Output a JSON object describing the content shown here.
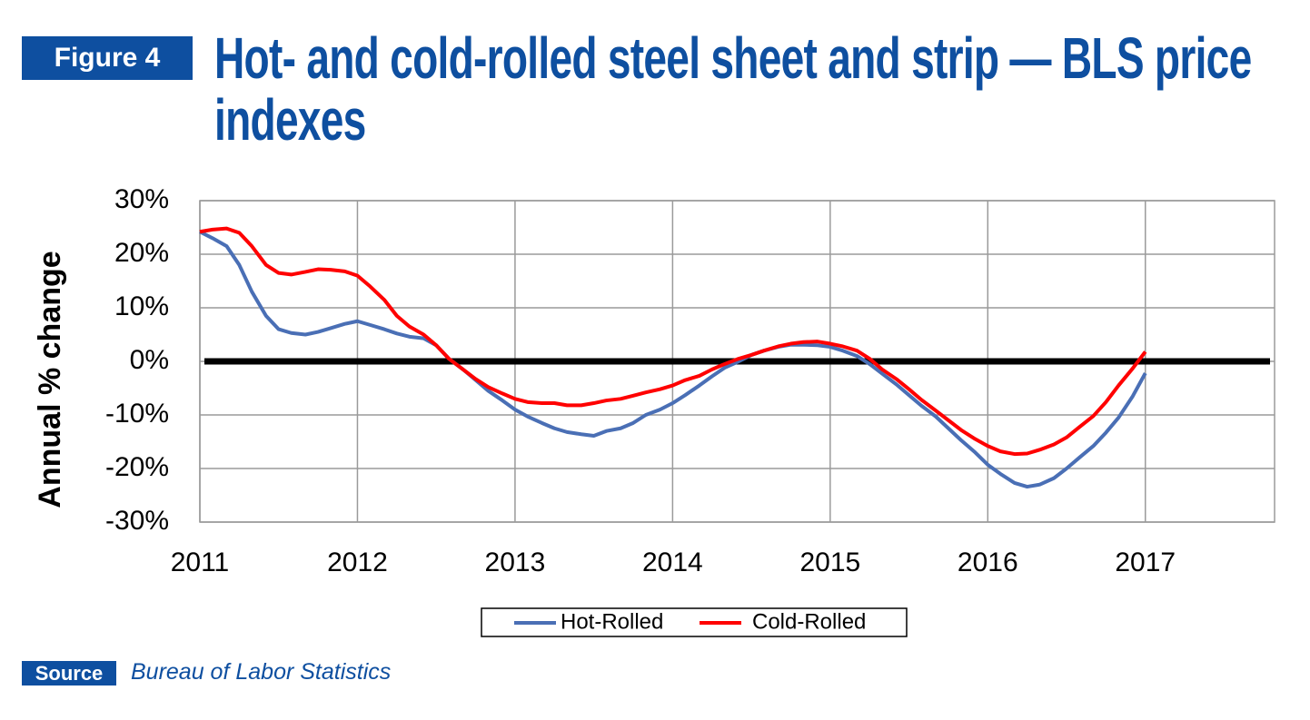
{
  "figure_label": "Figure 4",
  "source_label": "Source",
  "source": "Bureau of Labor Statistics",
  "chart_data": {
    "type": "line",
    "title": "Hot- and cold-rolled steel sheet and strip — BLS price indexes",
    "y_label": "Annual % change",
    "x": [
      2011,
      2011.08,
      2011.17,
      2011.25,
      2011.33,
      2011.42,
      2011.5,
      2011.58,
      2011.67,
      2011.75,
      2011.83,
      2011.92,
      2012,
      2012.08,
      2012.17,
      2012.25,
      2012.33,
      2012.42,
      2012.5,
      2012.58,
      2012.67,
      2012.75,
      2012.83,
      2012.92,
      2013,
      2013.08,
      2013.17,
      2013.25,
      2013.33,
      2013.42,
      2013.5,
      2013.58,
      2013.67,
      2013.75,
      2013.83,
      2013.92,
      2014,
      2014.08,
      2014.17,
      2014.25,
      2014.33,
      2014.42,
      2014.5,
      2014.58,
      2014.67,
      2014.75,
      2014.83,
      2014.92,
      2015,
      2015.08,
      2015.17,
      2015.25,
      2015.33,
      2015.42,
      2015.5,
      2015.58,
      2015.67,
      2015.75,
      2015.83,
      2015.92,
      2016,
      2016.08,
      2016.17,
      2016.25,
      2016.33,
      2016.42,
      2016.5,
      2016.58,
      2016.67,
      2016.75,
      2016.83,
      2016.92,
      2017
    ],
    "series": [
      {
        "name": "Hot-Rolled",
        "color": "#4a6fb5",
        "values": [
          24.2,
          23,
          21.5,
          18,
          13,
          8.5,
          6,
          5.3,
          5,
          5.5,
          6.2,
          7,
          7.5,
          6.8,
          6,
          5.2,
          4.6,
          4.3,
          3,
          0.5,
          -1.5,
          -3.5,
          -5.5,
          -7.3,
          -9,
          -10.3,
          -11.5,
          -12.5,
          -13.2,
          -13.6,
          -13.9,
          -13,
          -12.5,
          -11.5,
          -10,
          -9,
          -7.8,
          -6.3,
          -4.5,
          -2.8,
          -1.2,
          0,
          1.2,
          2,
          2.7,
          3.1,
          3.1,
          3,
          2.7,
          2,
          1,
          -0.5,
          -2.3,
          -4.3,
          -6.3,
          -8.3,
          -10.3,
          -12.5,
          -14.7,
          -17,
          -19.3,
          -21,
          -22.7,
          -23.4,
          -23,
          -21.8,
          -20,
          -18,
          -15.8,
          -13.3,
          -10.5,
          -6.5,
          -2.2
        ]
      },
      {
        "name": "Cold-Rolled",
        "color": "#ff0000",
        "values": [
          24.2,
          24.6,
          24.8,
          24,
          21.5,
          18,
          16.5,
          16.2,
          16.7,
          17.2,
          17.1,
          16.8,
          16,
          14,
          11.5,
          8.5,
          6.5,
          5,
          3,
          0.5,
          -1.5,
          -3.3,
          -4.8,
          -6,
          -7,
          -7.6,
          -7.8,
          -7.8,
          -8.2,
          -8.2,
          -7.8,
          -7.3,
          -7,
          -6.4,
          -5.8,
          -5.2,
          -4.5,
          -3.5,
          -2.7,
          -1.5,
          -0.5,
          0.5,
          1.2,
          2,
          2.8,
          3.3,
          3.6,
          3.7,
          3.3,
          2.8,
          2,
          0.5,
          -1.5,
          -3.3,
          -5.2,
          -7.2,
          -9.2,
          -11,
          -12.8,
          -14.5,
          -15.8,
          -16.8,
          -17.3,
          -17.2,
          -16.5,
          -15.5,
          -14.2,
          -12.3,
          -10.2,
          -7.6,
          -4.5,
          -1.3,
          1.8
        ]
      }
    ],
    "xlim": [
      2011,
      2017.82
    ],
    "xticks": [
      2011,
      2012,
      2013,
      2014,
      2015,
      2016,
      2017
    ],
    "ylim": [
      -30,
      30
    ],
    "yticks": [
      {
        "value": -30,
        "label": "-30%"
      },
      {
        "value": -20,
        "label": "-20%"
      },
      {
        "value": -10,
        "label": "-10%"
      },
      {
        "value": 0,
        "label": "0%"
      },
      {
        "value": 10,
        "label": "10%"
      },
      {
        "value": 20,
        "label": "20%"
      },
      {
        "value": 30,
        "label": "30%"
      }
    ],
    "grid": true,
    "zero_line": true,
    "legend": "bottom"
  }
}
